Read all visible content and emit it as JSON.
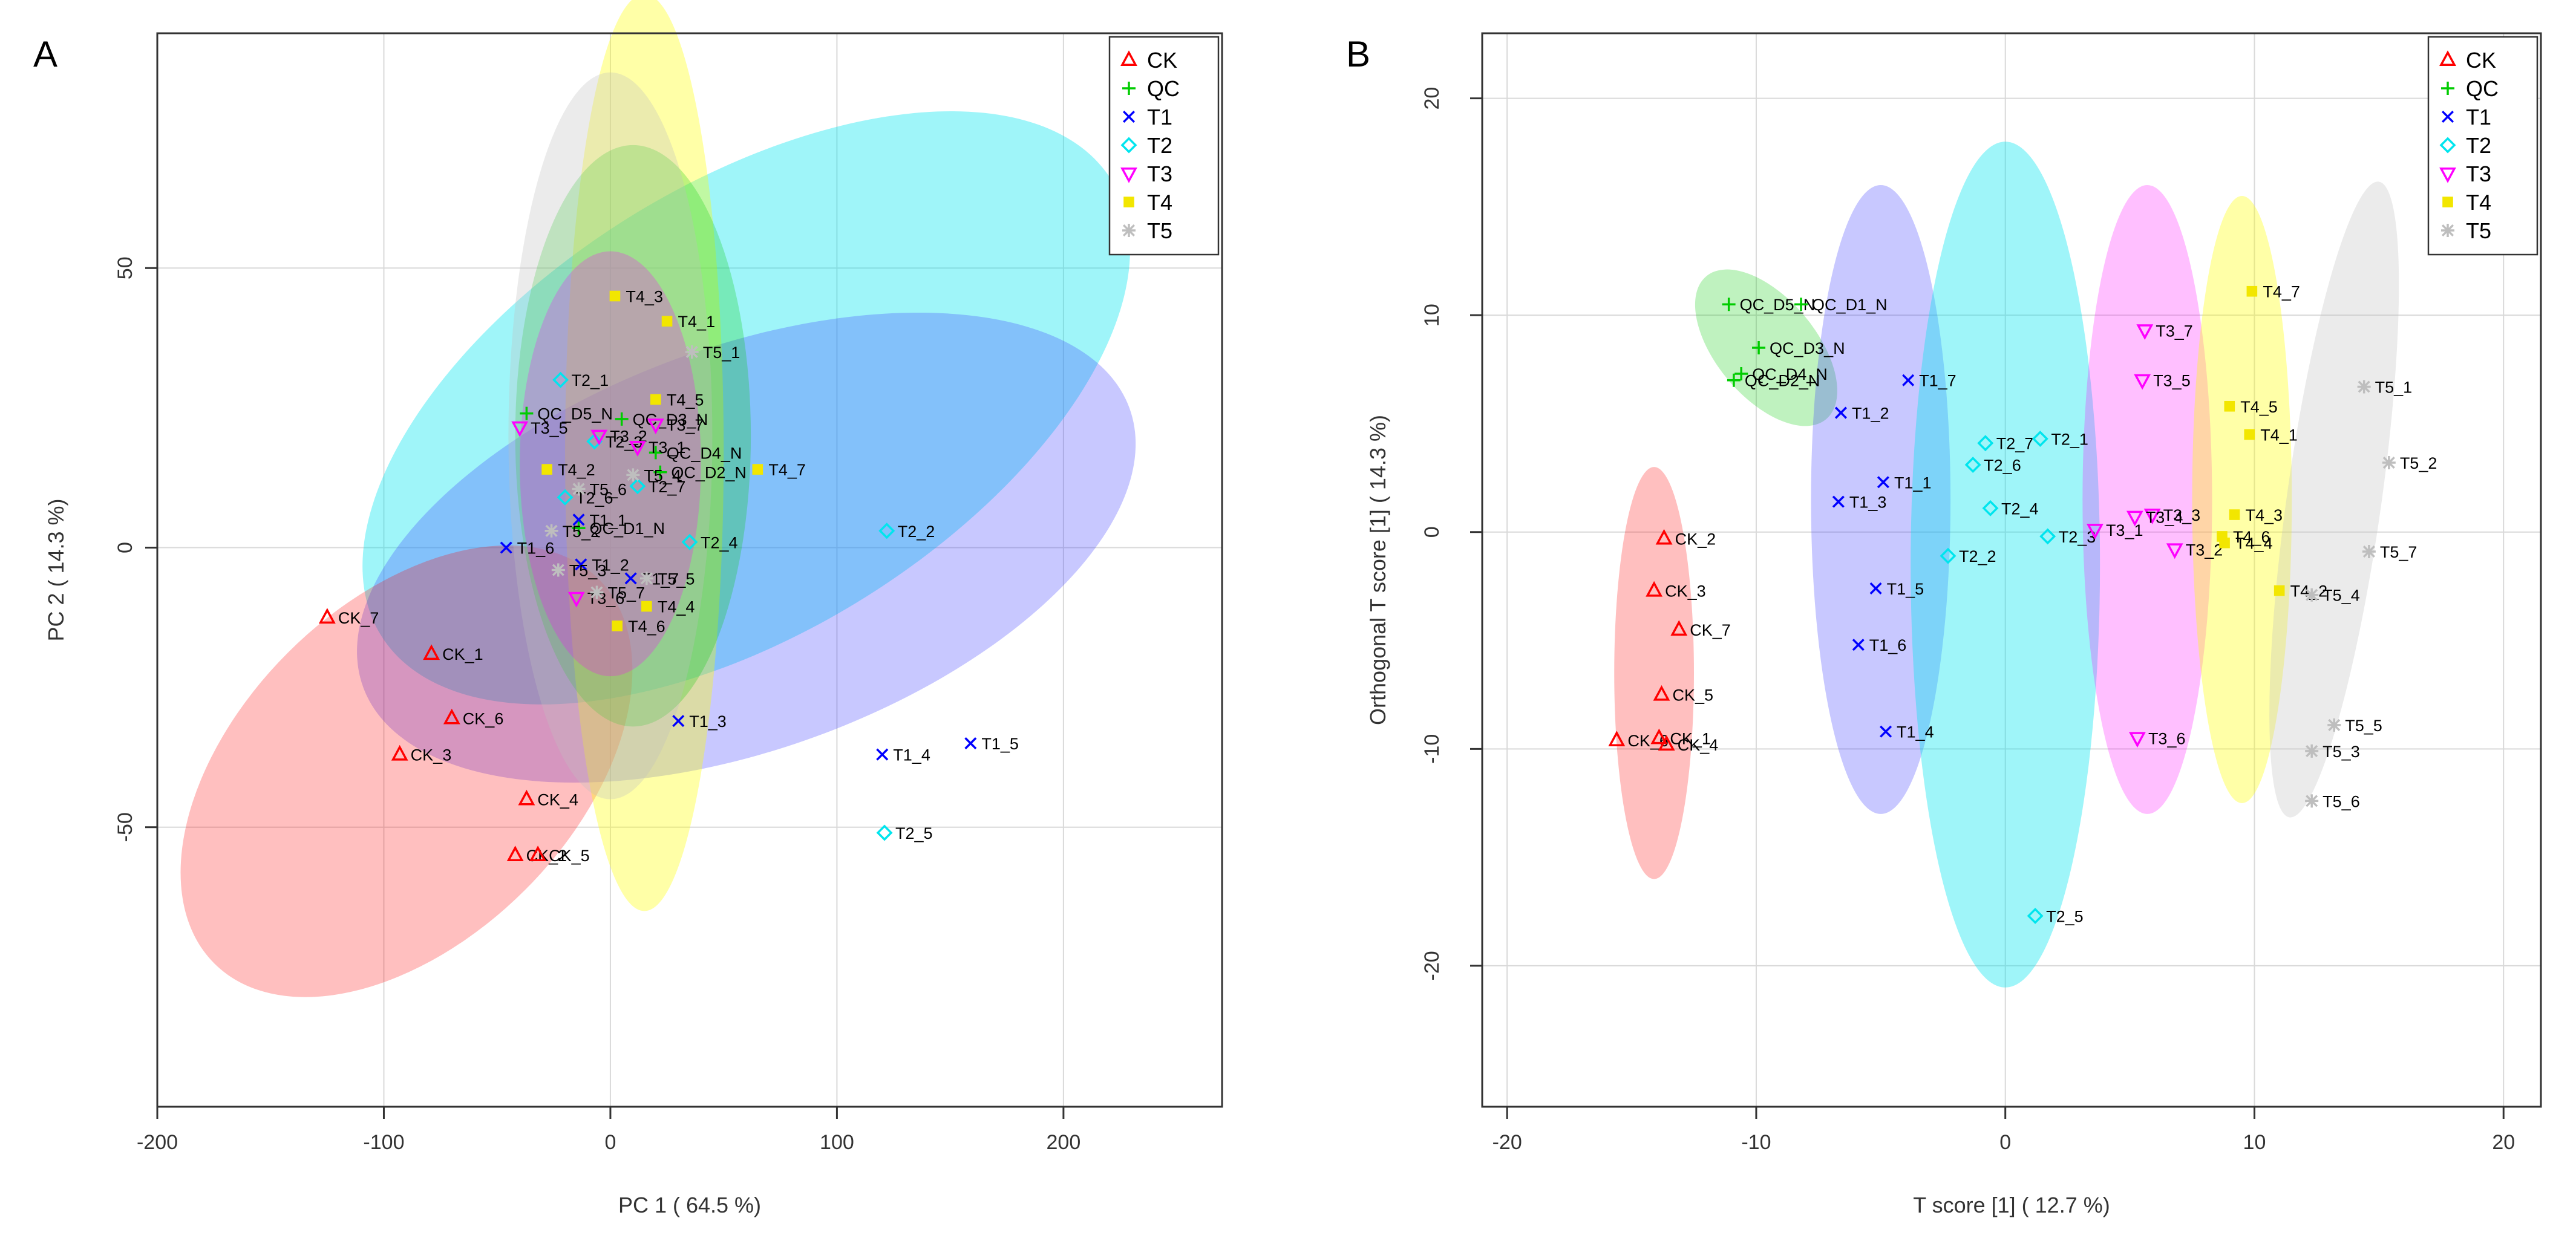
{
  "chart_data": [
    {
      "type": "scatter",
      "panel_label": "A",
      "xlabel": "PC 1 ( 64.5 %)",
      "ylabel": "PC 2 ( 14.3 %)",
      "xlim": [
        -200,
        270
      ],
      "ylim": [
        -100,
        92
      ],
      "xticks": [
        -200,
        -100,
        0,
        100,
        200
      ],
      "yticks": [
        -50,
        0,
        50
      ],
      "ytick_labels": [
        "-50",
        "0",
        "50"
      ],
      "grid": true,
      "legend_position": "top-right",
      "legend": [
        {
          "name": "CK",
          "color": "#ff0000",
          "marker": "triangle"
        },
        {
          "name": "QC",
          "color": "#00cc00",
          "marker": "plus"
        },
        {
          "name": "T1",
          "color": "#0000ff",
          "marker": "x"
        },
        {
          "name": "T2",
          "color": "#00e5ee",
          "marker": "diamond"
        },
        {
          "name": "T3",
          "color": "#ff00ff",
          "marker": "triangle-down"
        },
        {
          "name": "T4",
          "color": "#ffff00",
          "marker": "square"
        },
        {
          "name": "T5",
          "color": "#bebebe",
          "marker": "asterisk"
        }
      ],
      "ellipses": [
        {
          "group": "T2",
          "cx": 60,
          "cy": 25,
          "rx": 190,
          "ry": 40,
          "angle": 32
        },
        {
          "group": "T1",
          "cx": 60,
          "cy": 0,
          "rx": 180,
          "ry": 36,
          "angle": 20
        },
        {
          "group": "CK",
          "cx": -90,
          "cy": -40,
          "rx": 120,
          "ry": 30,
          "angle": 45
        },
        {
          "group": "T4",
          "cx": 15,
          "cy": 17,
          "rx": 35,
          "ry": 82,
          "angle": 0
        },
        {
          "group": "QC",
          "cx": 10,
          "cy": 20,
          "rx": 52,
          "ry": 52,
          "angle": 0
        },
        {
          "group": "T5",
          "cx": 0,
          "cy": 20,
          "rx": 45,
          "ry": 65,
          "angle": 0
        },
        {
          "group": "T3",
          "cx": 0,
          "cy": 15,
          "rx": 40,
          "ry": 38,
          "angle": 0
        }
      ],
      "points": [
        {
          "group": "CK",
          "label": "CK_7",
          "x": -125,
          "y": -12.5
        },
        {
          "group": "CK",
          "label": "CK_1",
          "x": -79,
          "y": -19
        },
        {
          "group": "CK",
          "label": "CK_6",
          "x": -70,
          "y": -30.5
        },
        {
          "group": "CK",
          "label": "CK_3",
          "x": -93,
          "y": -37
        },
        {
          "group": "CK",
          "label": "CK_4",
          "x": -37,
          "y": -45
        },
        {
          "group": "CK",
          "label": "CK_2",
          "x": -42,
          "y": -55
        },
        {
          "group": "CK",
          "label": "CK_5",
          "x": -32,
          "y": -55
        },
        {
          "group": "QC",
          "label": "QC_D5_N",
          "x": -37,
          "y": 24
        },
        {
          "group": "QC",
          "label": "QC_D3_N",
          "x": 5,
          "y": 23
        },
        {
          "group": "QC",
          "label": "QC_D4_N",
          "x": 20,
          "y": 17
        },
        {
          "group": "QC",
          "label": "QC_D2_N",
          "x": 22,
          "y": 13.5
        },
        {
          "group": "QC",
          "label": "QC_D1_N",
          "x": -14,
          "y": 3.5
        },
        {
          "group": "T1",
          "label": "T1_1",
          "x": -14,
          "y": 5
        },
        {
          "group": "T1",
          "label": "T1_6",
          "x": -46,
          "y": 0
        },
        {
          "group": "T1",
          "label": "T1_2",
          "x": -13,
          "y": -3
        },
        {
          "group": "T1",
          "label": "T1_7",
          "x": 9,
          "y": -5.5
        },
        {
          "group": "T1",
          "label": "T1_3",
          "x": 30,
          "y": -31
        },
        {
          "group": "T1",
          "label": "T1_4",
          "x": 120,
          "y": -37
        },
        {
          "group": "T1",
          "label": "T1_5",
          "x": 159,
          "y": -35
        },
        {
          "group": "T2",
          "label": "T2_1",
          "x": -22,
          "y": 30
        },
        {
          "group": "T2",
          "label": "T2_2",
          "x": 122,
          "y": 3
        },
        {
          "group": "T2",
          "label": "T2_4",
          "x": 35,
          "y": 1
        },
        {
          "group": "T2",
          "label": "T2_7",
          "x": 12,
          "y": 11
        },
        {
          "group": "T2",
          "label": "T2_5",
          "x": 121,
          "y": -51
        },
        {
          "group": "T2",
          "label": "T2_6",
          "x": -20,
          "y": 9
        },
        {
          "group": "T2",
          "label": "T2_3",
          "x": -7,
          "y": 19
        },
        {
          "group": "T3",
          "label": "T3_5",
          "x": -40,
          "y": 21.5
        },
        {
          "group": "T3",
          "label": "T3_2",
          "x": -5,
          "y": 20
        },
        {
          "group": "T3",
          "label": "T3_7",
          "x": 20,
          "y": 22
        },
        {
          "group": "T3",
          "label": "T3_6",
          "x": -15,
          "y": -9
        },
        {
          "group": "T3",
          "label": "T3_1",
          "x": 12,
          "y": 18
        },
        {
          "group": "T4",
          "label": "T4_3",
          "x": 2,
          "y": 45
        },
        {
          "group": "T4",
          "label": "T4_1",
          "x": 25,
          "y": 40.5
        },
        {
          "group": "T4",
          "label": "T4_5",
          "x": 20,
          "y": 26.5
        },
        {
          "group": "T4",
          "label": "T4_2",
          "x": -28,
          "y": 14
        },
        {
          "group": "T4",
          "label": "T4_7",
          "x": 65,
          "y": 14
        },
        {
          "group": "T4",
          "label": "T4_4",
          "x": 16,
          "y": -10.5
        },
        {
          "group": "T4",
          "label": "T4_6",
          "x": 3,
          "y": -14
        },
        {
          "group": "T5",
          "label": "T5_1",
          "x": 36,
          "y": 35
        },
        {
          "group": "T5",
          "label": "T5_4",
          "x": 10,
          "y": 13
        },
        {
          "group": "T5",
          "label": "T5_6",
          "x": -14,
          "y": 10.5
        },
        {
          "group": "T5",
          "label": "T5_2",
          "x": -26,
          "y": 3
        },
        {
          "group": "T5",
          "label": "T5_3",
          "x": -23,
          "y": -4
        },
        {
          "group": "T5",
          "label": "T5_5",
          "x": 16,
          "y": -5.5
        },
        {
          "group": "T5",
          "label": "T5_7",
          "x": -6,
          "y": -8
        }
      ]
    },
    {
      "type": "scatter",
      "panel_label": "B",
      "xlabel": "T score [1] ( 12.7 %)",
      "ylabel": "Orthogonal T score [1] ( 14.3 %)",
      "xlim": [
        -21,
        21.5
      ],
      "ylim": [
        -26.5,
        23
      ],
      "xticks": [
        -20,
        -10,
        0,
        10,
        20
      ],
      "yticks": [
        -20,
        -10,
        0,
        10,
        20
      ],
      "ytick_labels": [
        "-20",
        "-10",
        "0",
        "10",
        "20"
      ],
      "grid": true,
      "legend_position": "top-right",
      "legend": [
        {
          "name": "CK",
          "color": "#ff0000",
          "marker": "triangle"
        },
        {
          "name": "QC",
          "color": "#00cc00",
          "marker": "plus"
        },
        {
          "name": "T1",
          "color": "#0000ff",
          "marker": "x"
        },
        {
          "name": "T2",
          "color": "#00e5ee",
          "marker": "diamond"
        },
        {
          "name": "T3",
          "color": "#ff00ff",
          "marker": "triangle-down"
        },
        {
          "name": "T4",
          "color": "#ffff00",
          "marker": "square"
        },
        {
          "name": "T5",
          "color": "#bebebe",
          "marker": "asterisk"
        }
      ],
      "ellipses": [
        {
          "group": "CK",
          "cx": -14.1,
          "cy": -6.5,
          "rx": 1.6,
          "ry": 9.5,
          "angle": 0
        },
        {
          "group": "QC",
          "cx": -9.6,
          "cy": 8.5,
          "rx": 2.0,
          "ry": 4.3,
          "angle": 40
        },
        {
          "group": "T1",
          "cx": -5,
          "cy": 1.5,
          "rx": 2.8,
          "ry": 14.5,
          "angle": 0
        },
        {
          "group": "T2",
          "cx": 0,
          "cy": -1.5,
          "rx": 3.8,
          "ry": 19.5,
          "angle": 0
        },
        {
          "group": "T3",
          "cx": 5.7,
          "cy": 1.5,
          "rx": 2.6,
          "ry": 14.5,
          "angle": 0
        },
        {
          "group": "T4",
          "cx": 9.5,
          "cy": 1.5,
          "rx": 2.0,
          "ry": 14,
          "angle": 0
        },
        {
          "group": "T5",
          "cx": 13.2,
          "cy": 1.5,
          "rx": 1.9,
          "ry": 14.8,
          "angle": -8
        }
      ],
      "points": [
        {
          "group": "CK",
          "label": "CK_2",
          "x": -13.7,
          "y": -0.3
        },
        {
          "group": "CK",
          "label": "CK_3",
          "x": -14.1,
          "y": -2.7
        },
        {
          "group": "CK",
          "label": "CK_7",
          "x": -13.1,
          "y": -4.5
        },
        {
          "group": "CK",
          "label": "CK_5",
          "x": -13.8,
          "y": -7.5
        },
        {
          "group": "CK",
          "label": "CK_6",
          "x": -15.6,
          "y": -9.6
        },
        {
          "group": "CK",
          "label": "CK_1",
          "x": -13.9,
          "y": -9.5
        },
        {
          "group": "CK",
          "label": "CK_4",
          "x": -13.6,
          "y": -9.8
        },
        {
          "group": "QC",
          "label": "QC_D5_N",
          "x": -11.1,
          "y": 10.5
        },
        {
          "group": "QC",
          "label": "QC_D1_N",
          "x": -8.2,
          "y": 10.5
        },
        {
          "group": "QC",
          "label": "QC_D3_N",
          "x": -9.9,
          "y": 8.5
        },
        {
          "group": "QC",
          "label": "QC_D4_N",
          "x": -10.6,
          "y": 7.3
        },
        {
          "group": "QC",
          "label": "QC_D2_N",
          "x": -10.9,
          "y": 7.0
        },
        {
          "group": "T1",
          "label": "T1_7",
          "x": -3.9,
          "y": 7.0
        },
        {
          "group": "T1",
          "label": "T1_2",
          "x": -6.6,
          "y": 5.5
        },
        {
          "group": "T1",
          "label": "T1_1",
          "x": -4.9,
          "y": 2.3
        },
        {
          "group": "T1",
          "label": "T1_3",
          "x": -6.7,
          "y": 1.4
        },
        {
          "group": "T1",
          "label": "T1_5",
          "x": -5.2,
          "y": -2.6
        },
        {
          "group": "T1",
          "label": "T1_6",
          "x": -5.9,
          "y": -5.2
        },
        {
          "group": "T1",
          "label": "T1_4",
          "x": -4.8,
          "y": -9.2
        },
        {
          "group": "T2",
          "label": "T2_7",
          "x": -0.8,
          "y": 4.1
        },
        {
          "group": "T2",
          "label": "T2_1",
          "x": 1.4,
          "y": 4.3
        },
        {
          "group": "T2",
          "label": "T2_6",
          "x": -1.3,
          "y": 3.1
        },
        {
          "group": "T2",
          "label": "T2_4",
          "x": -0.6,
          "y": 1.1
        },
        {
          "group": "T2",
          "label": "T2_2",
          "x": -2.3,
          "y": -1.1
        },
        {
          "group": "T2",
          "label": "T2_3",
          "x": 1.7,
          "y": -0.2
        },
        {
          "group": "T2",
          "label": "T2_5",
          "x": 1.2,
          "y": -17.7
        },
        {
          "group": "T3",
          "label": "T3_7",
          "x": 5.6,
          "y": 9.3
        },
        {
          "group": "T3",
          "label": "T3_5",
          "x": 5.5,
          "y": 7.0
        },
        {
          "group": "T3",
          "label": "T3_1",
          "x": 3.6,
          "y": 0.1
        },
        {
          "group": "T3",
          "label": "T3_3",
          "x": 5.9,
          "y": 0.8
        },
        {
          "group": "T3",
          "label": "T3_4",
          "x": 5.2,
          "y": 0.7
        },
        {
          "group": "T3",
          "label": "T3_2",
          "x": 6.8,
          "y": -0.8
        },
        {
          "group": "T3",
          "label": "T3_6",
          "x": 5.3,
          "y": -9.5
        },
        {
          "group": "T4",
          "label": "T4_7",
          "x": 9.9,
          "y": 11.1
        },
        {
          "group": "T4",
          "label": "T4_5",
          "x": 9.0,
          "y": 5.8
        },
        {
          "group": "T4",
          "label": "T4_1",
          "x": 9.8,
          "y": 4.5
        },
        {
          "group": "T4",
          "label": "T4_3",
          "x": 9.2,
          "y": 0.8
        },
        {
          "group": "T4",
          "label": "T4_6",
          "x": 8.7,
          "y": -0.2
        },
        {
          "group": "T4",
          "label": "T4_4",
          "x": 8.8,
          "y": -0.5
        },
        {
          "group": "T4",
          "label": "T4_2",
          "x": 11.0,
          "y": -2.7
        },
        {
          "group": "T5",
          "label": "T5_1",
          "x": 14.4,
          "y": 6.7
        },
        {
          "group": "T5",
          "label": "T5_2",
          "x": 15.4,
          "y": 3.2
        },
        {
          "group": "T5",
          "label": "T5_7",
          "x": 14.6,
          "y": -0.9
        },
        {
          "group": "T5",
          "label": "T5_4",
          "x": 12.3,
          "y": -2.9
        },
        {
          "group": "T5",
          "label": "T5_5",
          "x": 13.2,
          "y": -8.9
        },
        {
          "group": "T5",
          "label": "T5_3",
          "x": 12.3,
          "y": -10.1
        },
        {
          "group": "T5",
          "label": "T5_6",
          "x": 12.3,
          "y": -12.4
        }
      ]
    }
  ]
}
